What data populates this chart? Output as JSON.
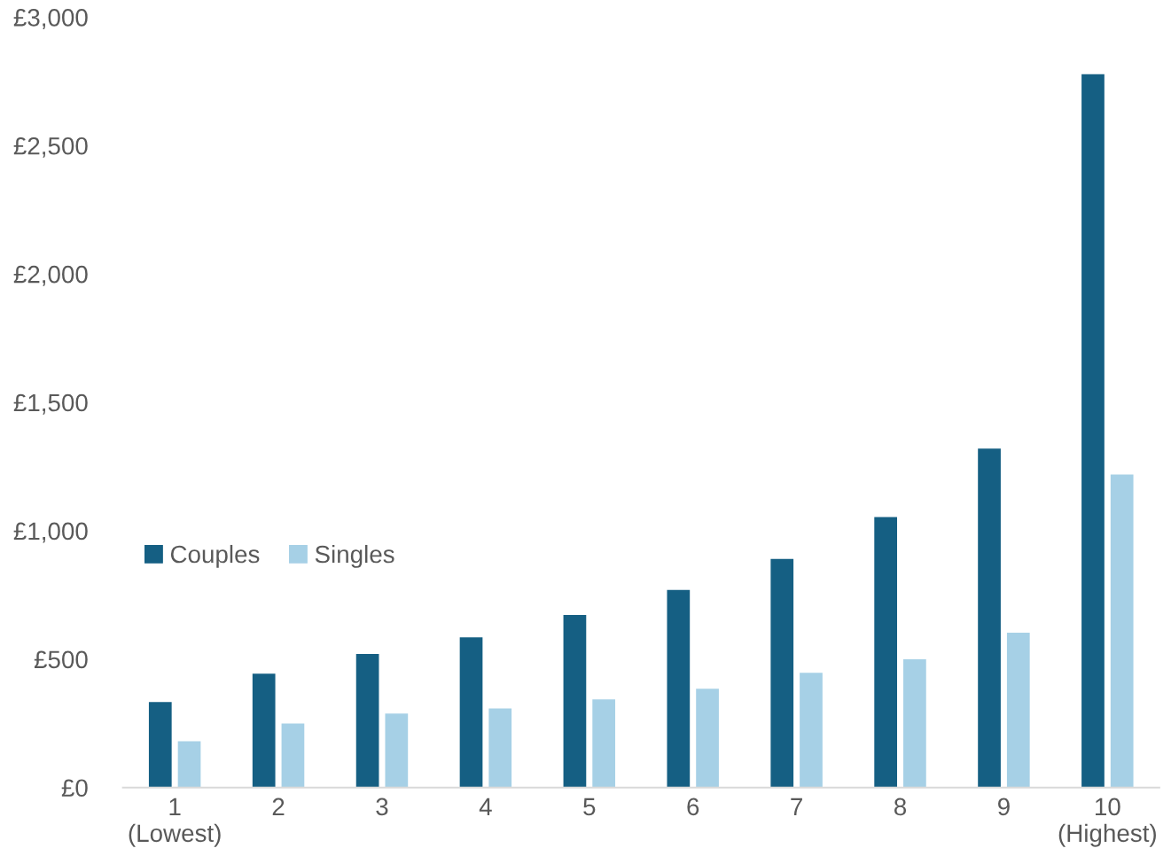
{
  "chart_data": {
    "type": "bar",
    "categories": [
      "1\n(Lowest)",
      "2",
      "3",
      "4",
      "5",
      "6",
      "7",
      "8",
      "9",
      "10\n(Highest)"
    ],
    "series": [
      {
        "name": "Couples",
        "color": "#155f83",
        "values": [
          333,
          443,
          520,
          585,
          672,
          769,
          890,
          1053,
          1320,
          2778
        ]
      },
      {
        "name": "Singles",
        "color": "#a6d0e6",
        "values": [
          180,
          249,
          288,
          308,
          343,
          385,
          447,
          499,
          603,
          1219
        ]
      }
    ],
    "ylim": [
      0,
      3000
    ],
    "yticks": [
      {
        "value": 0,
        "label": "£0"
      },
      {
        "value": 500,
        "label": "£500"
      },
      {
        "value": 1000,
        "label": "£1,000"
      },
      {
        "value": 1500,
        "label": "£1,500"
      },
      {
        "value": 2000,
        "label": "£2,000"
      },
      {
        "value": 2500,
        "label": "£2,500"
      },
      {
        "value": 3000,
        "label": "£3,000"
      }
    ],
    "grid": false,
    "legend": "left"
  }
}
